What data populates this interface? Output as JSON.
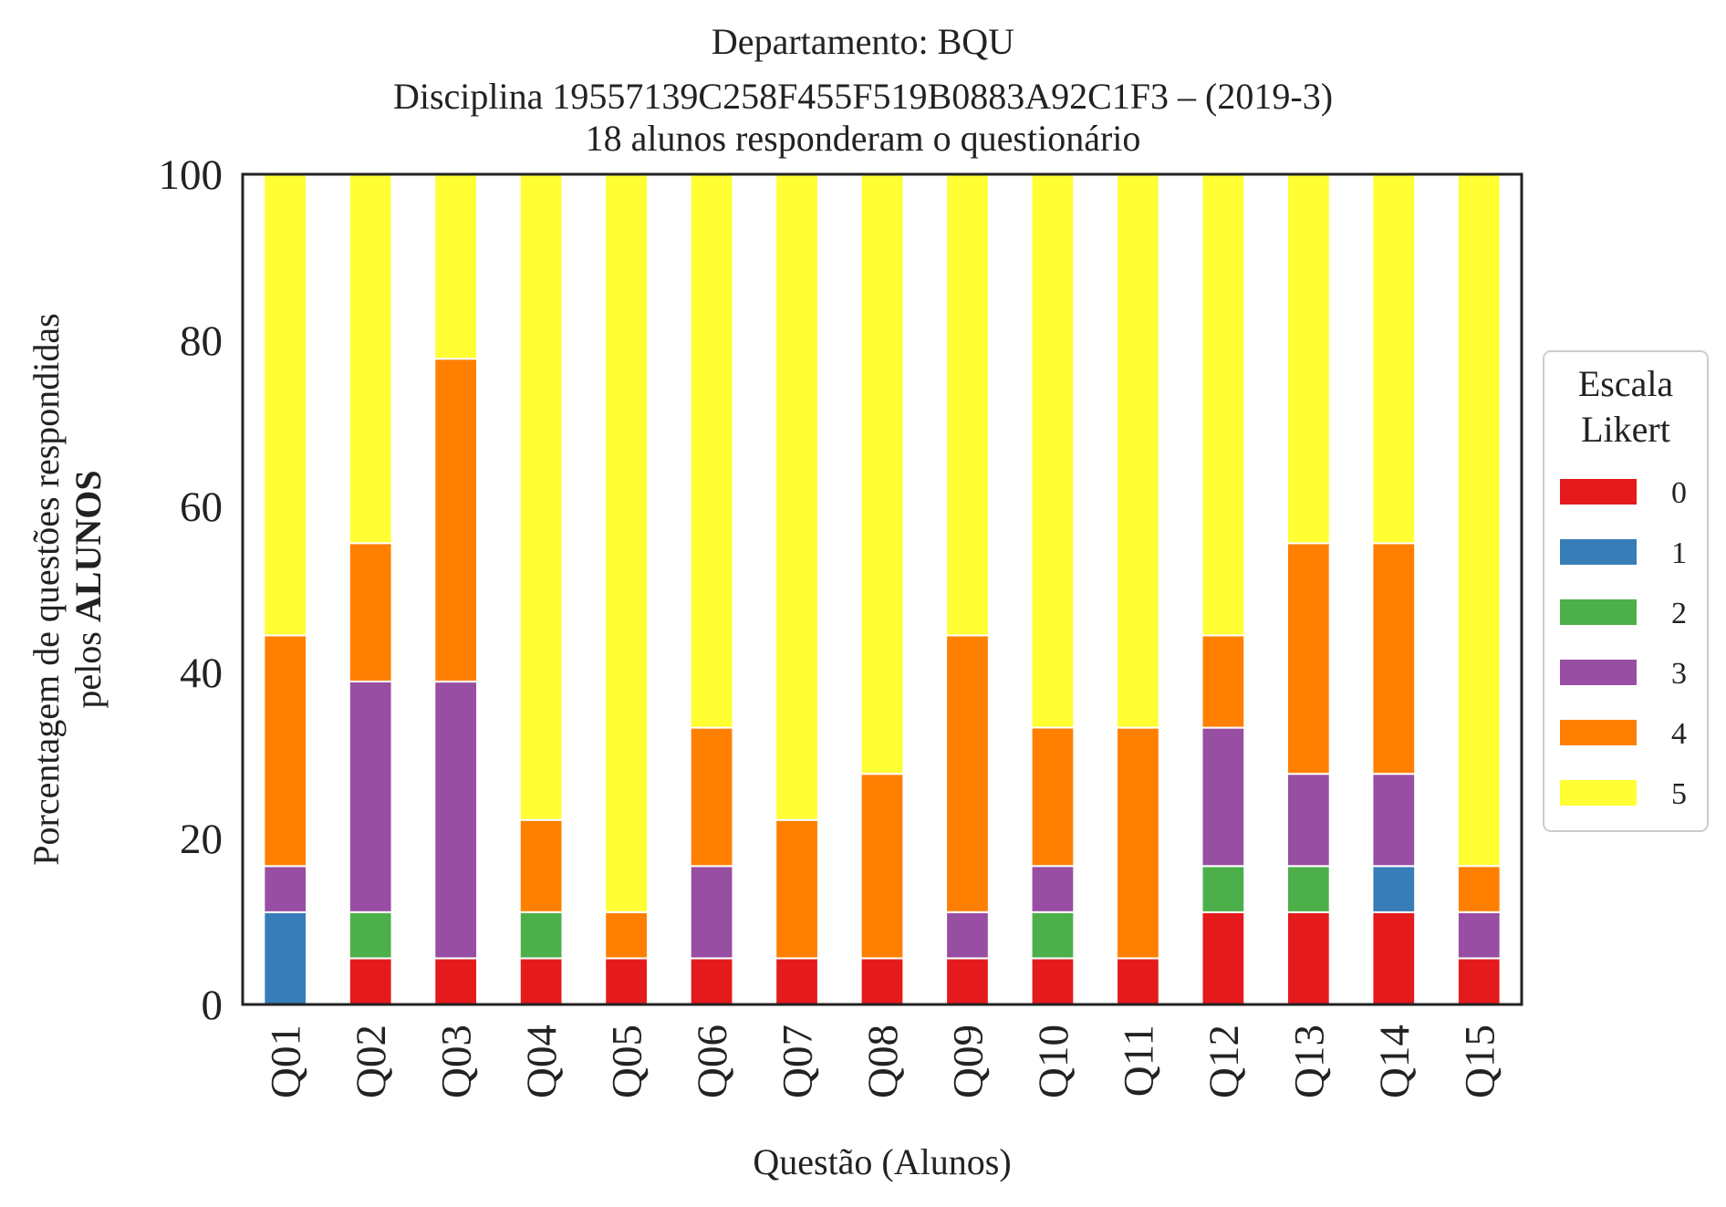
{
  "chart_data": {
    "type": "bar",
    "stacked": true,
    "title_lines": [
      "Departamento: BQU",
      "Disciplina 19557139C258F455F519B0883A92C1F3 – (2019-3)",
      "18 alunos responderam o questionário"
    ],
    "xlabel": "Questão (Alunos)",
    "ylabel_line1": "Porcentagem de questões respondidas",
    "ylabel_line2_prefix": "pelos ",
    "ylabel_line2_bold": "ALUNOS",
    "ylim": [
      0,
      100
    ],
    "yticks": [
      0,
      20,
      40,
      60,
      80,
      100
    ],
    "grid": false,
    "legend": {
      "title_lines": [
        "Escala",
        "Likert"
      ],
      "placement": "right-center"
    },
    "categories": [
      "Q01",
      "Q02",
      "Q03",
      "Q04",
      "Q05",
      "Q06",
      "Q07",
      "Q08",
      "Q09",
      "Q10",
      "Q11",
      "Q12",
      "Q13",
      "Q14",
      "Q15"
    ],
    "series": [
      {
        "name": "0",
        "color": "#e41a1c",
        "values": [
          0,
          5.56,
          5.56,
          5.56,
          5.56,
          5.56,
          5.56,
          5.56,
          5.56,
          5.56,
          5.56,
          11.11,
          11.11,
          11.11,
          5.56
        ]
      },
      {
        "name": "1",
        "color": "#377eb8",
        "values": [
          11.11,
          0,
          0,
          0,
          0,
          0,
          0,
          0,
          0,
          0,
          0,
          0,
          0,
          5.56,
          0
        ]
      },
      {
        "name": "2",
        "color": "#4daf4a",
        "values": [
          0,
          5.56,
          0,
          5.56,
          0,
          0,
          0,
          0,
          0,
          5.56,
          0,
          5.56,
          5.56,
          0,
          0
        ]
      },
      {
        "name": "3",
        "color": "#984ea3",
        "values": [
          5.56,
          27.78,
          33.33,
          0,
          0,
          11.11,
          0,
          0,
          5.56,
          5.56,
          0,
          16.67,
          11.11,
          11.11,
          5.56
        ]
      },
      {
        "name": "4",
        "color": "#ff7f00",
        "values": [
          27.78,
          16.67,
          38.89,
          11.11,
          5.56,
          16.67,
          16.67,
          22.22,
          33.33,
          16.67,
          27.78,
          11.11,
          27.78,
          27.78,
          5.56
        ]
      },
      {
        "name": "5",
        "color": "#ffff33",
        "values": [
          55.56,
          44.44,
          22.22,
          77.78,
          88.89,
          66.67,
          77.78,
          72.22,
          55.56,
          66.67,
          66.67,
          55.56,
          44.44,
          44.44,
          83.33
        ]
      }
    ]
  }
}
